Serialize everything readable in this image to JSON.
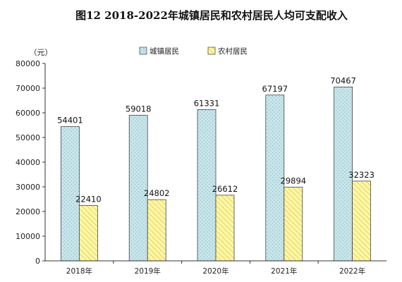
{
  "chart_data": {
    "type": "bar",
    "title": "图12   2018-2022年城镇居民和农村居民人均可支配收入",
    "ylabel": "（元）",
    "categories": [
      "2018年",
      "2019年",
      "2020年",
      "2021年",
      "2022年"
    ],
    "series": [
      {
        "name": "城镇居民",
        "values": [
          54401,
          59018,
          61331,
          67197,
          70467
        ],
        "color": "#c9e7ec",
        "pattern": "dots"
      },
      {
        "name": "农村居民",
        "values": [
          22410,
          24802,
          26612,
          29894,
          32323
        ],
        "color": "#fff7a8",
        "pattern": "diagonal"
      }
    ],
    "ylim": [
      0,
      80000
    ],
    "yticks": [
      "0",
      "10000",
      "20000",
      "30000",
      "40000",
      "50000",
      "60000",
      "70000",
      "80000"
    ],
    "legend": "top-center",
    "grid": false
  }
}
